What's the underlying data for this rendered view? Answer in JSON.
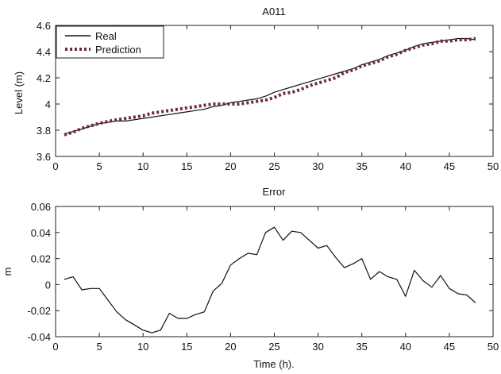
{
  "chart_data": [
    {
      "type": "line",
      "title": "A011",
      "xlabel": "",
      "ylabel": "Level (m)",
      "xlim": [
        0,
        50
      ],
      "ylim": [
        3.6,
        4.6
      ],
      "xticks": [
        "0",
        "5",
        "10",
        "15",
        "20",
        "25",
        "30",
        "35",
        "40",
        "45",
        "50"
      ],
      "yticks": [
        "3.6",
        "3.8",
        "4",
        "4.2",
        "4.4",
        "4.6"
      ],
      "xtick_values": [
        0,
        5,
        10,
        15,
        20,
        25,
        30,
        35,
        40,
        45,
        50
      ],
      "ytick_values": [
        3.6,
        3.8,
        4.0,
        4.2,
        4.4,
        4.6
      ],
      "grid": false,
      "legend": "top-left",
      "x": [
        1,
        2,
        3,
        4,
        5,
        6,
        7,
        8,
        9,
        10,
        11,
        12,
        13,
        14,
        15,
        16,
        17,
        18,
        19,
        20,
        21,
        22,
        23,
        24,
        25,
        26,
        27,
        28,
        29,
        30,
        31,
        32,
        33,
        34,
        35,
        36,
        37,
        38,
        39,
        40,
        41,
        42,
        43,
        44,
        45,
        46,
        47,
        48
      ],
      "series": [
        {
          "name": "Real",
          "style": "solid",
          "color": "#111111",
          "values": [
            3.77,
            3.79,
            3.81,
            3.83,
            3.85,
            3.86,
            3.87,
            3.87,
            3.88,
            3.89,
            3.9,
            3.91,
            3.92,
            3.93,
            3.94,
            3.95,
            3.96,
            3.98,
            3.99,
            4.01,
            4.02,
            4.03,
            4.04,
            4.06,
            4.09,
            4.11,
            4.13,
            4.15,
            4.17,
            4.19,
            4.21,
            4.23,
            4.25,
            4.27,
            4.3,
            4.32,
            4.34,
            4.37,
            4.39,
            4.41,
            4.44,
            4.46,
            4.47,
            4.48,
            4.49,
            4.5,
            4.5,
            4.49
          ]
        },
        {
          "name": "Prediction",
          "style": "dotted-thick",
          "color": "#6b2b3f",
          "values": [
            3.765,
            3.785,
            3.814,
            3.834,
            3.853,
            3.867,
            3.88,
            3.89,
            3.9,
            3.91,
            3.93,
            3.94,
            3.95,
            3.96,
            3.97,
            3.98,
            3.99,
            4.0,
            4.0,
            4.0,
            4.0,
            4.01,
            4.02,
            4.03,
            4.05,
            4.08,
            4.09,
            4.11,
            4.14,
            4.16,
            4.18,
            4.2,
            4.24,
            4.26,
            4.29,
            4.31,
            4.33,
            4.36,
            4.38,
            4.41,
            4.43,
            4.45,
            4.46,
            4.48,
            4.48,
            4.49,
            4.49,
            4.5
          ]
        }
      ]
    },
    {
      "type": "line",
      "title": "Error",
      "xlabel": "Time (h).",
      "ylabel": "m",
      "xlim": [
        0,
        50
      ],
      "ylim": [
        -0.04,
        0.06
      ],
      "xticks": [
        "0",
        "5",
        "10",
        "15",
        "20",
        "25",
        "30",
        "35",
        "40",
        "45",
        "50"
      ],
      "yticks": [
        "-0.04",
        "-0.02",
        "0",
        "0.02",
        "0.04",
        "0.06"
      ],
      "xtick_values": [
        0,
        5,
        10,
        15,
        20,
        25,
        30,
        35,
        40,
        45,
        50
      ],
      "ytick_values": [
        -0.04,
        -0.02,
        0,
        0.02,
        0.04,
        0.06
      ],
      "grid": false,
      "legend": "none",
      "x": [
        1,
        2,
        3,
        4,
        5,
        6,
        7,
        8,
        9,
        10,
        11,
        12,
        13,
        14,
        15,
        16,
        17,
        18,
        19,
        20,
        21,
        22,
        23,
        24,
        25,
        26,
        27,
        28,
        29,
        30,
        31,
        32,
        33,
        34,
        35,
        36,
        37,
        38,
        39,
        40,
        41,
        42,
        43,
        44,
        45,
        46,
        47,
        48
      ],
      "series": [
        {
          "style": "solid",
          "color": "#111111",
          "values": [
            0.004,
            0.006,
            -0.004,
            -0.003,
            -0.003,
            -0.012,
            -0.021,
            -0.027,
            -0.031,
            -0.035,
            -0.037,
            -0.035,
            -0.022,
            -0.026,
            -0.026,
            -0.023,
            -0.021,
            -0.005,
            0.001,
            0.015,
            0.02,
            0.024,
            0.023,
            0.04,
            0.044,
            0.034,
            0.041,
            0.04,
            0.034,
            0.028,
            0.03,
            0.021,
            0.013,
            0.016,
            0.02,
            0.004,
            0.01,
            0.006,
            0.004,
            -0.009,
            0.011,
            0.003,
            -0.002,
            0.007,
            -0.003,
            -0.007,
            -0.008,
            -0.014
          ]
        }
      ]
    }
  ]
}
